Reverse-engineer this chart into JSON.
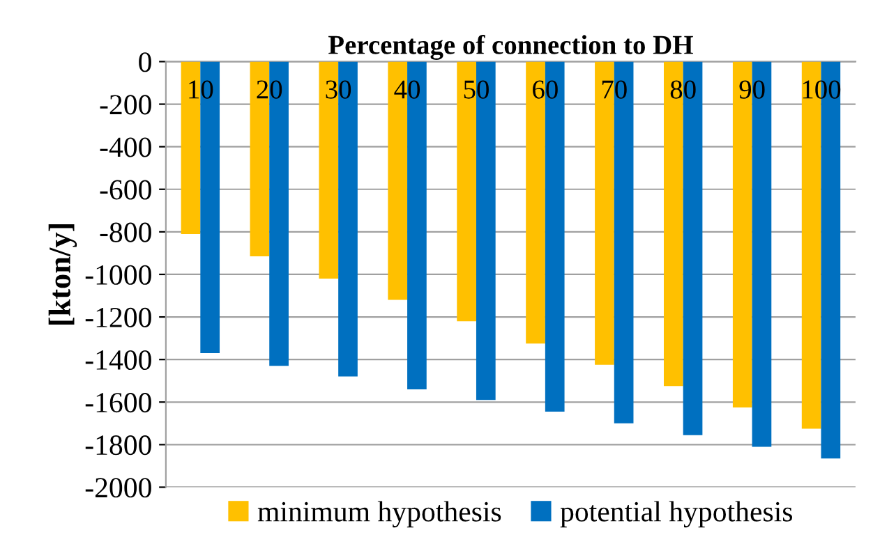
{
  "chart_data": {
    "type": "bar",
    "xlabel": "Percentage of connection to DH",
    "ylabel": "[kton/y]",
    "categories": [
      "10",
      "20",
      "30",
      "40",
      "50",
      "60",
      "70",
      "80",
      "90",
      "100"
    ],
    "series": [
      {
        "name": "minimum hypothesis",
        "color": "#ffc000",
        "values": [
          -810,
          -915,
          -1020,
          -1120,
          -1220,
          -1325,
          -1425,
          -1525,
          -1625,
          -1725
        ]
      },
      {
        "name": "potential hypothesis",
        "color": "#0070c0",
        "values": [
          -1370,
          -1430,
          -1480,
          -1540,
          -1590,
          -1645,
          -1700,
          -1755,
          -1810,
          -1865
        ]
      }
    ],
    "ylim": [
      -2000,
      0
    ],
    "yticks": [
      -2000,
      -1800,
      -1600,
      -1400,
      -1200,
      -1000,
      -800,
      -600,
      -400,
      -200,
      0
    ],
    "grid": "y",
    "legend": "bottom"
  }
}
